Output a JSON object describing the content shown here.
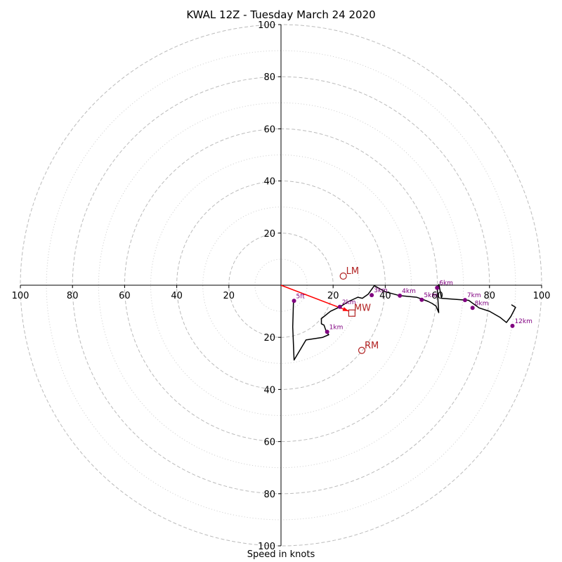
{
  "chart_data": {
    "type": "hodograph",
    "title": "KWAL 12Z - Tuesday March 24 2020",
    "xlabel": "Speed in knots",
    "range": [
      -100,
      100
    ],
    "ring_step": 20,
    "tick_labels": [
      "100",
      "80",
      "60",
      "40",
      "20",
      "20",
      "40",
      "60",
      "80",
      "100"
    ],
    "x_ticks": [
      -100,
      -80,
      -60,
      -40,
      -20,
      20,
      40,
      60,
      80,
      100
    ],
    "y_ticks": [
      100,
      80,
      60,
      40,
      20,
      -20,
      -40,
      -60,
      -80,
      -100
    ],
    "hodo_trace": [
      [
        4.8,
        -5.9
      ],
      [
        4.5,
        -16
      ],
      [
        5,
        -28.7
      ],
      [
        9.6,
        -21
      ],
      [
        16,
        -20
      ],
      [
        18.3,
        -19
      ],
      [
        17.3,
        -17.6
      ],
      [
        16.5,
        -15.3
      ],
      [
        15.5,
        -14.8
      ],
      [
        15.5,
        -12.8
      ],
      [
        19,
        -10
      ],
      [
        22.6,
        -8.3
      ],
      [
        26,
        -6.2
      ],
      [
        29.5,
        -4.6
      ],
      [
        31.2,
        -5
      ],
      [
        33.5,
        -3.4
      ],
      [
        35.8,
        -0.2
      ],
      [
        40,
        -2.5
      ],
      [
        45.5,
        -4
      ],
      [
        52,
        -4.6
      ],
      [
        54,
        -5.3
      ],
      [
        56.4,
        -6.2
      ],
      [
        58,
        -7
      ],
      [
        59.5,
        -8
      ],
      [
        60.5,
        -10.5
      ],
      [
        60,
        -2
      ],
      [
        60.6,
        0.3
      ],
      [
        61.6,
        -5
      ],
      [
        72,
        -5.8
      ],
      [
        76,
        -8.7
      ],
      [
        80,
        -10
      ],
      [
        84,
        -12.3
      ],
      [
        86.5,
        -14.3
      ],
      [
        88.2,
        -12
      ],
      [
        90,
        -8.5
      ],
      [
        88.4,
        -7.5
      ]
    ],
    "height_markers": [
      {
        "label": "5ft",
        "u": 5,
        "v": -6
      },
      {
        "label": "1km",
        "u": 17.7,
        "v": -17.9
      },
      {
        "label": "2km",
        "u": 22.6,
        "v": -8.3
      },
      {
        "label": "3km",
        "u": 34.8,
        "v": -3.8
      },
      {
        "label": "4km",
        "u": 45.6,
        "v": -4
      },
      {
        "label": "5km",
        "u": 54,
        "v": -5.6
      },
      {
        "label": "6km",
        "u": 59.9,
        "v": -1
      },
      {
        "label": "7km",
        "u": 70.6,
        "v": -5.7
      },
      {
        "label": "8km",
        "u": 73.5,
        "v": -8.7
      },
      {
        "label": "12km",
        "u": 88.8,
        "v": -15.6
      }
    ],
    "storm_motion": [
      {
        "label": "LM",
        "u": 23.9,
        "v": 3.5
      },
      {
        "label": "RM",
        "u": 31,
        "v": -25
      }
    ],
    "mean_wind": {
      "label": "MW",
      "u": 27.2,
      "v": -10.7
    },
    "shear_vector": {
      "from": [
        0,
        0
      ],
      "to": [
        25.9,
        -9.9
      ]
    },
    "colors": {
      "trace": "#000000",
      "markers": "#800080",
      "motion": "#b22222",
      "shear": "#ff0000",
      "rings": "#bbbbbb",
      "minor_rings": "#cccccc"
    }
  }
}
